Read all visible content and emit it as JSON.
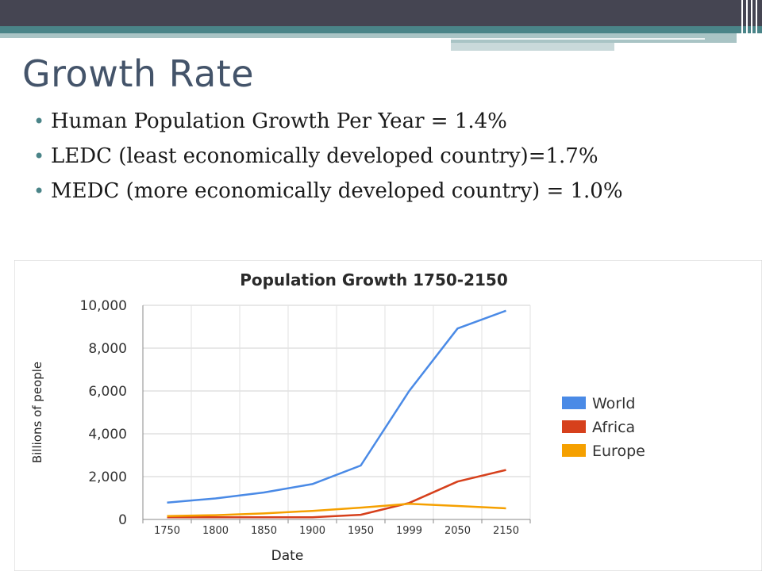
{
  "slide": {
    "title": "Growth Rate",
    "bullets": [
      "Human Population Growth Per Year = 1.4%",
      "LEDC (least economically developed country)=1.7%",
      "MEDC (more economically developed country) = 1.0%"
    ],
    "bullet_glyph": "•"
  },
  "colors": {
    "title": "#44546a",
    "accent": "#4a8488",
    "world": "#4a8ae6",
    "africa": "#d6401c",
    "europe": "#f5a000"
  },
  "chart_data": {
    "type": "line",
    "title": "Population Growth 1750-2150",
    "xlabel": "Date",
    "ylabel": "Billions of people",
    "categories": [
      "1750",
      "1800",
      "1850",
      "1900",
      "1950",
      "1999",
      "2050",
      "2150"
    ],
    "ylim": [
      0,
      10000
    ],
    "yticks": [
      "0",
      "2,000",
      "4,000",
      "6,000",
      "8,000",
      "10,000"
    ],
    "grid": true,
    "legend": "right",
    "series": [
      {
        "name": "World",
        "color": "#4a8ae6",
        "values": [
          790,
          980,
          1260,
          1650,
          2520,
          6000,
          8920,
          9750
        ]
      },
      {
        "name": "Africa",
        "color": "#d6401c",
        "values": [
          100,
          100,
          100,
          100,
          220,
          770,
          1770,
          2310
        ]
      },
      {
        "name": "Europe",
        "color": "#f5a000",
        "values": [
          160,
          200,
          280,
          400,
          550,
          730,
          630,
          520
        ]
      }
    ]
  }
}
